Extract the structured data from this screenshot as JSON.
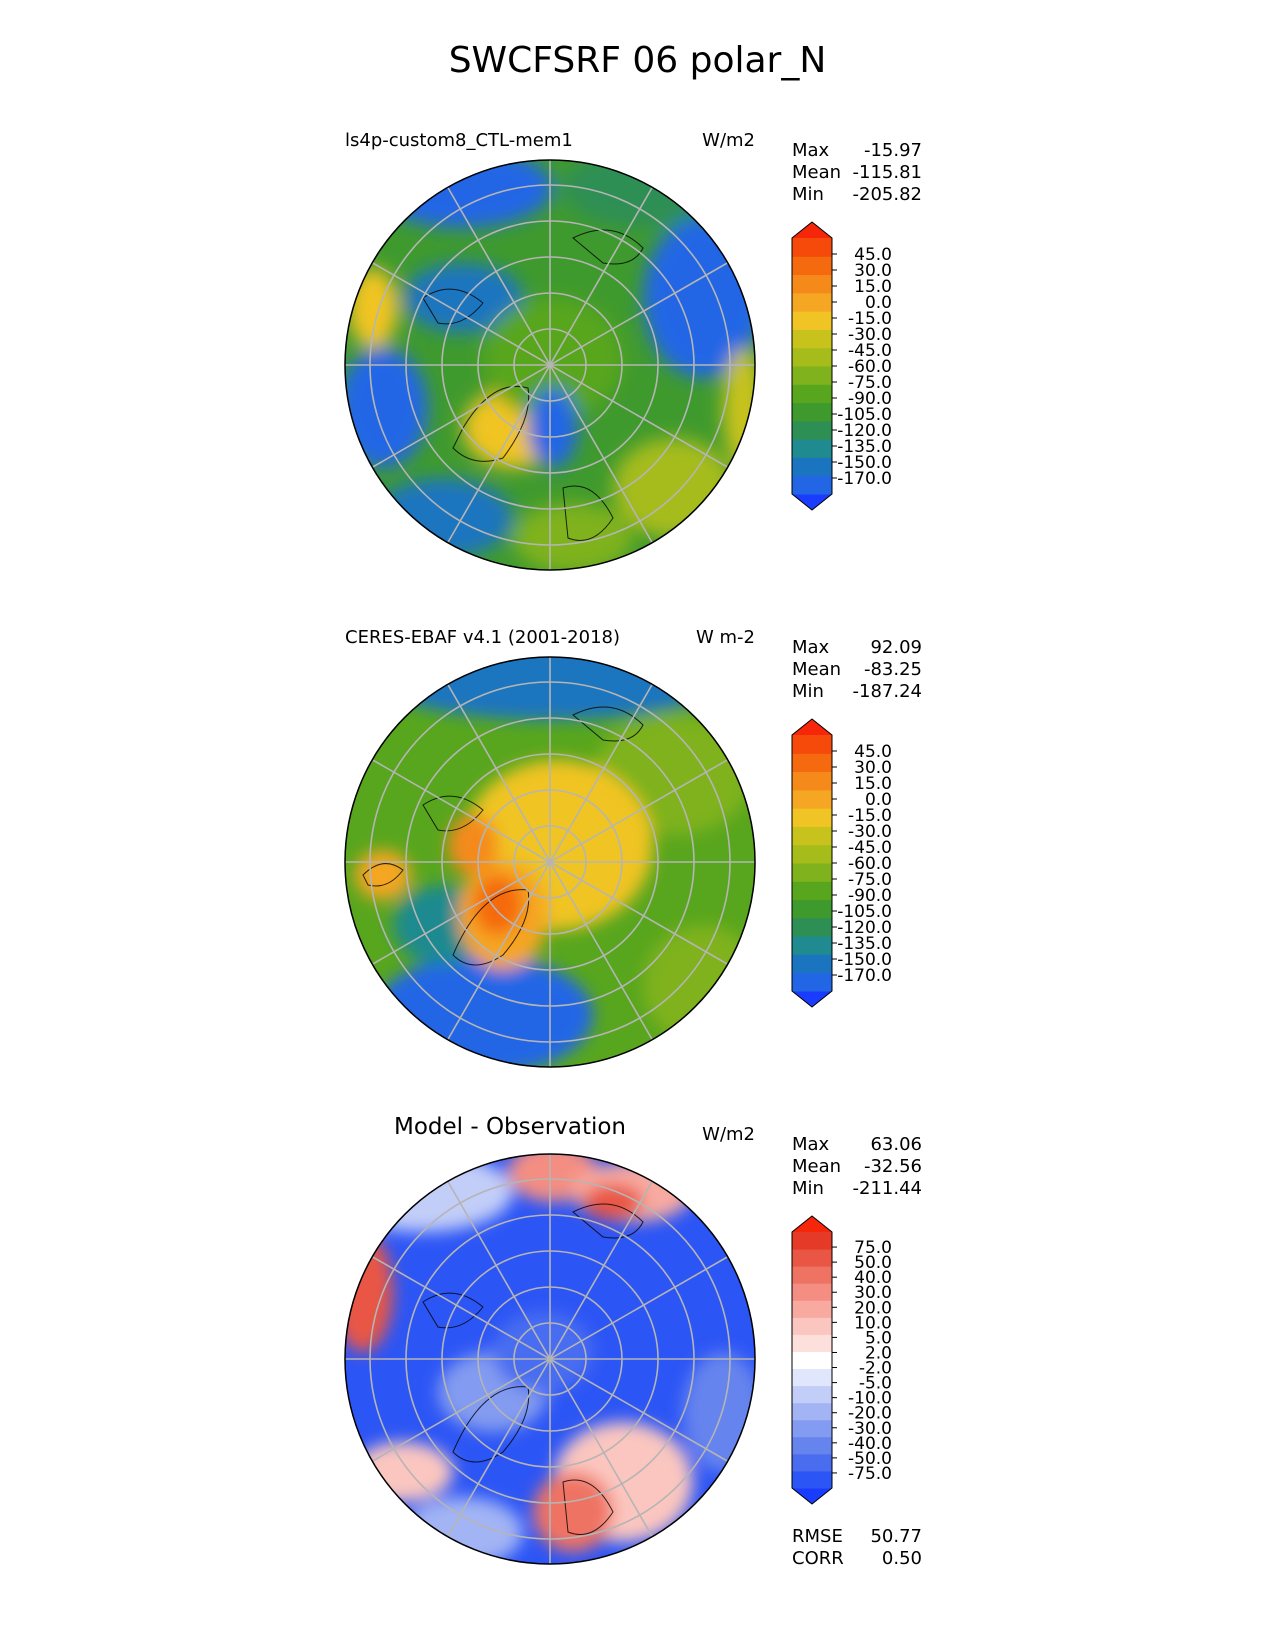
{
  "title": "SWCFSRF 06 polar_N",
  "panels": [
    {
      "id": "test",
      "left_title": "ls4p-custom8_CTL-mem1",
      "center_title": "",
      "units": "W/m2",
      "stats": {
        "max_label": "Max",
        "max": "-15.97",
        "mean_label": "Mean",
        "mean": "-115.81",
        "min_label": "Min",
        "min": "-205.82"
      },
      "colorbar": {
        "labels": [
          "45.0",
          "30.0",
          "15.0",
          "0.0",
          "-15.0",
          "-30.0",
          "-45.0",
          "-60.0",
          "-75.0",
          "-90.0",
          "-105.0",
          "-120.0",
          "-135.0",
          "-150.0",
          "-170.0"
        ],
        "colors": [
          "#1a3cff",
          "#2266e6",
          "#1a74bf",
          "#1f8a8f",
          "#2e8f55",
          "#3f9a2e",
          "#58a61e",
          "#7fb21c",
          "#a6bc1a",
          "#c8c21c",
          "#f0c424",
          "#f5a623",
          "#f58a1a",
          "#f56a0f",
          "#f54a0a",
          "#f5260a"
        ]
      }
    },
    {
      "id": "reference",
      "left_title": "CERES-EBAF v4.1 (2001-2018)",
      "center_title": "",
      "units": "W m-2",
      "stats": {
        "max_label": "Max",
        "max": "92.09",
        "mean_label": "Mean",
        "mean": "-83.25",
        "min_label": "Min",
        "min": "-187.24"
      },
      "colorbar": {
        "labels": [
          "45.0",
          "30.0",
          "15.0",
          "0.0",
          "-15.0",
          "-30.0",
          "-45.0",
          "-60.0",
          "-75.0",
          "-90.0",
          "-105.0",
          "-120.0",
          "-135.0",
          "-150.0",
          "-170.0"
        ],
        "colors": [
          "#1a3cff",
          "#2266e6",
          "#1a74bf",
          "#1f8a8f",
          "#2e8f55",
          "#3f9a2e",
          "#58a61e",
          "#7fb21c",
          "#a6bc1a",
          "#c8c21c",
          "#f0c424",
          "#f5a623",
          "#f58a1a",
          "#f56a0f",
          "#f54a0a",
          "#f5260a"
        ]
      }
    },
    {
      "id": "diff",
      "left_title": "",
      "center_title": "Model - Observation",
      "units": "W/m2",
      "stats": {
        "max_label": "Max",
        "max": "63.06",
        "mean_label": "Mean",
        "mean": "-32.56",
        "min_label": "Min",
        "min": "-211.44"
      },
      "colorbar": {
        "labels": [
          "75.0",
          "50.0",
          "40.0",
          "30.0",
          "20.0",
          "10.0",
          "5.0",
          "2.0",
          "-2.0",
          "-5.0",
          "-10.0",
          "-20.0",
          "-30.0",
          "-40.0",
          "-50.0",
          "-75.0"
        ],
        "colors": [
          "#1a3cff",
          "#2c55f5",
          "#4a6df0",
          "#6684ee",
          "#839bf0",
          "#a2b4f4",
          "#c2cdf8",
          "#e0e6fc",
          "#ffffff",
          "#fde0dc",
          "#fbc6bf",
          "#f8aaa0",
          "#f48e82",
          "#ef7363",
          "#e95744",
          "#e53a27",
          "#f5260a"
        ]
      },
      "metrics": {
        "rmse_label": "RMSE",
        "rmse": "50.77",
        "corr_label": "CORR",
        "corr": "0.50"
      }
    }
  ]
}
